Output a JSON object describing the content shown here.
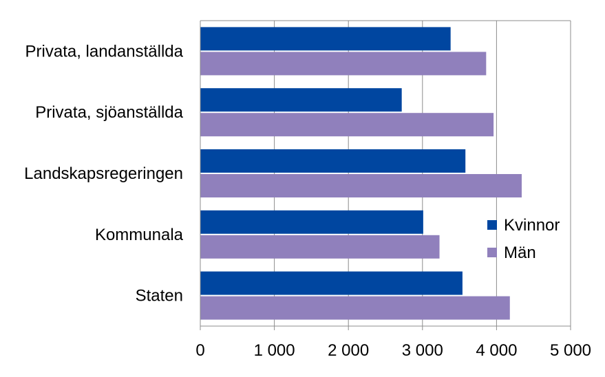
{
  "chart_data": {
    "type": "bar",
    "orientation": "horizontal",
    "categories": [
      "Privata, landanställda",
      "Privata, sjöanställda",
      "Landskapsregeringen",
      "Kommunala",
      "Staten"
    ],
    "series": [
      {
        "name": "Kvinnor",
        "color": "#0046A0",
        "values": [
          3380,
          2720,
          3580,
          3010,
          3540
        ]
      },
      {
        "name": "Män",
        "color": "#9080BC",
        "values": [
          3860,
          3960,
          4340,
          3230,
          4180
        ]
      }
    ],
    "xlim": [
      0,
      5000
    ],
    "x_ticks": [
      0,
      1000,
      2000,
      3000,
      4000,
      5000
    ],
    "x_tick_labels": [
      "0",
      "1 000",
      "2 000",
      "3 000",
      "4 000",
      "5 000"
    ],
    "grid": "vertical",
    "legend_position": "right",
    "title": "",
    "xlabel": "",
    "ylabel": ""
  }
}
